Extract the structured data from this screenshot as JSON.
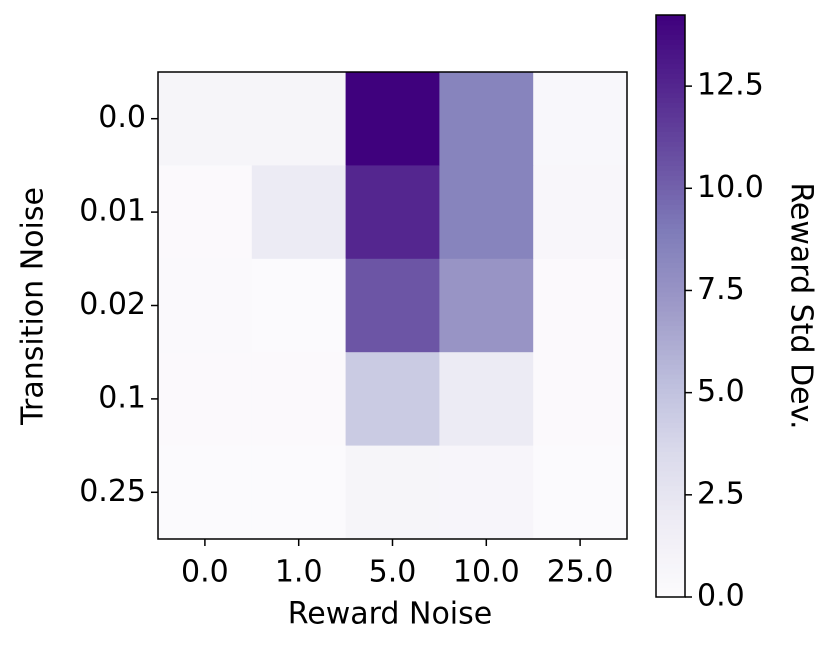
{
  "chart_data": {
    "type": "heatmap",
    "x_label": "Reward Noise",
    "y_label": "Transition Noise",
    "colorbar_label": "Reward Std Dev.",
    "columns": [
      "0.0",
      "1.0",
      "5.0",
      "10.0",
      "25.0"
    ],
    "rows": [
      "0.0",
      "0.01",
      "0.02",
      "0.1",
      "0.25"
    ],
    "values": [
      [
        0.8,
        0.8,
        14.2,
        8.5,
        0.5
      ],
      [
        0.2,
        2.0,
        12.5,
        8.5,
        0.6
      ],
      [
        0.3,
        0.1,
        10.5,
        7.5,
        0.2
      ],
      [
        0.2,
        0.2,
        4.5,
        2.0,
        0.2
      ],
      [
        0.1,
        0.1,
        0.8,
        0.7,
        0.1
      ]
    ],
    "colormap": "Purples",
    "clim": [
      0,
      14.24
    ],
    "cbar_ticks": [
      {
        "value": 0,
        "label": "0.0"
      },
      {
        "value": 2.5,
        "label": "2.5"
      },
      {
        "value": 5,
        "label": "5.0"
      },
      {
        "value": 7.5,
        "label": "7.5"
      },
      {
        "value": 10,
        "label": "10.0"
      },
      {
        "value": 12.5,
        "label": "12.5"
      }
    ]
  }
}
